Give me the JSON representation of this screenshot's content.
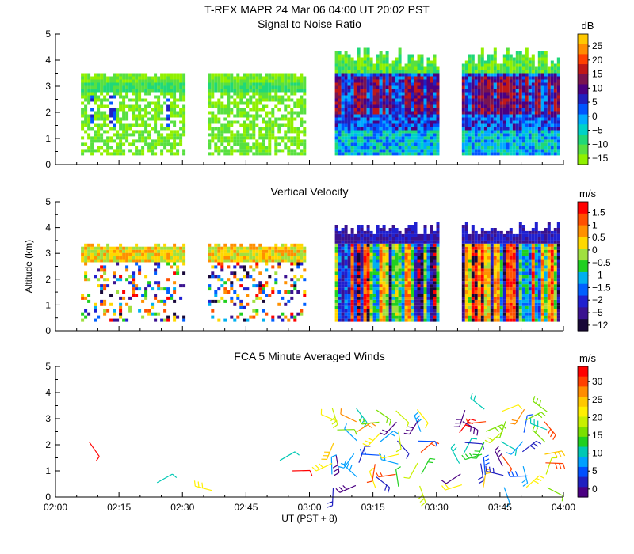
{
  "header": {
    "title": "T-REX   MAPR 24 Mar 06   04:00 UT   20:02   PST"
  },
  "chart_data": [
    {
      "type": "heatmap",
      "title": "Signal to Noise Ratio",
      "ylim": [
        0,
        5
      ],
      "yticks": [
        "0",
        "1",
        "2",
        "3",
        "4",
        "5"
      ],
      "colorbar_unit": "dB",
      "colorbar_labels": [
        "25",
        "20",
        "15",
        "10",
        "5",
        "0",
        "−5",
        "−10",
        "−15"
      ],
      "colorbar_colors": [
        "#FFC800",
        "#FF8C00",
        "#FF4000",
        "#C01818",
        "#7A1450",
        "#4B0082",
        "#2020C0",
        "#0055FF",
        "#00AAFF",
        "#00D2C8",
        "#20D878",
        "#58E040",
        "#90F000"
      ]
    },
    {
      "type": "heatmap",
      "title": "Vertical Velocity",
      "ylabel": "Altitude (km)",
      "ylim": [
        0,
        5
      ],
      "yticks": [
        "0",
        "1",
        "2",
        "3",
        "4",
        "5"
      ],
      "colorbar_unit": "m/s",
      "colorbar_labels": [
        "1.5",
        "1",
        "0.5",
        "0",
        "−0.5",
        "−1",
        "−1.5",
        "−2",
        "−5",
        "−12"
      ],
      "colorbar_colors": [
        "#FF0000",
        "#FF5000",
        "#FF9000",
        "#FFD800",
        "#A0E040",
        "#20D020",
        "#00B0F0",
        "#0060FF",
        "#2020D0",
        "#3A1290",
        "#180838"
      ]
    },
    {
      "type": "scatter",
      "title": "FCA 5 Minute Averaged Winds",
      "xlabel": "UT  (PST + 8)",
      "xticks": [
        "02:00",
        "02:15",
        "02:30",
        "02:45",
        "03:00",
        "03:15",
        "03:30",
        "03:45",
        "04:00"
      ],
      "xlim": [
        "02:00",
        "04:00"
      ],
      "ylim": [
        0,
        5
      ],
      "yticks": [
        "0",
        "1",
        "2",
        "3",
        "4",
        "5"
      ],
      "colorbar_unit": "m/s",
      "colorbar_labels": [
        "30",
        "25",
        "20",
        "15",
        "10",
        "5",
        "0"
      ],
      "colorbar_colors": [
        "#FF0000",
        "#FF4000",
        "#FF8C00",
        "#FFC800",
        "#FFF000",
        "#C8F000",
        "#7AE000",
        "#20D020",
        "#00C8B4",
        "#00A0FF",
        "#0050FF",
        "#2020C0",
        "#4B0082"
      ]
    }
  ]
}
